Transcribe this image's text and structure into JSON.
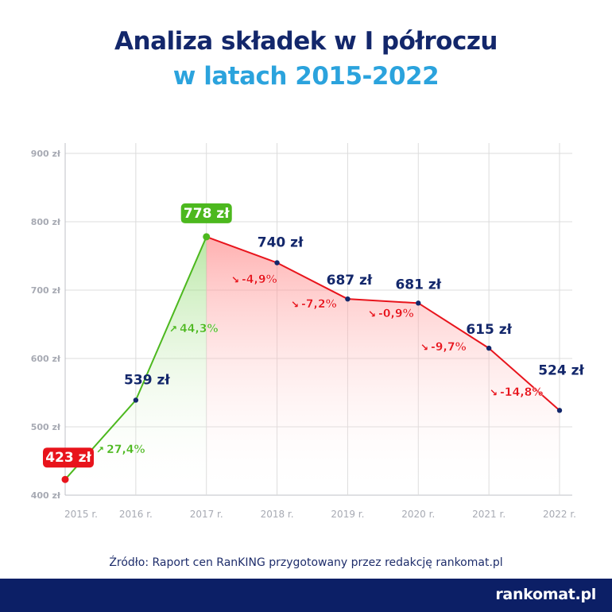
{
  "header": {
    "title_line1": "Analiza składek w I półroczu",
    "title_line2": "w latach 2015-2022"
  },
  "colors": {
    "title_dark": "#13276b",
    "title_light": "#2ba3dd",
    "green": "#4cb81e",
    "red": "#e8141c",
    "navy": "#13276b",
    "grid": "#dcdcdc",
    "tick": "#a7aab3"
  },
  "chart_data": {
    "type": "line",
    "title": "Analiza składek w I półroczu w latach 2015-2022",
    "xlabel": "",
    "ylabel": "",
    "ylim": [
      400,
      900
    ],
    "grid": true,
    "y_ticks": [
      {
        "value": 400,
        "label": "400 zł"
      },
      {
        "value": 500,
        "label": "500 zł"
      },
      {
        "value": 600,
        "label": "600 zł"
      },
      {
        "value": 700,
        "label": "700 zł"
      },
      {
        "value": 800,
        "label": "800 zł"
      },
      {
        "value": 900,
        "label": "900 zł"
      }
    ],
    "categories": [
      "2015 r.",
      "2016 r.",
      "2017 r.",
      "2018 r.",
      "2019 r.",
      "2020 r.",
      "2021 r.",
      "2022 r."
    ],
    "values": [
      423,
      539,
      778,
      740,
      687,
      681,
      615,
      524
    ],
    "value_labels": [
      "423 zł",
      "539 zł",
      "778 zł",
      "740 zł",
      "687 zł",
      "681 zł",
      "615 zł",
      "524 zł"
    ],
    "changes": [
      {
        "from": "2015 r.",
        "to": "2016 r.",
        "label": "27,4%",
        "direction": "up"
      },
      {
        "from": "2016 r.",
        "to": "2017 r.",
        "label": "44,3%",
        "direction": "up"
      },
      {
        "from": "2017 r.",
        "to": "2018 r.",
        "label": "-4,9%",
        "direction": "down"
      },
      {
        "from": "2018 r.",
        "to": "2019 r.",
        "label": "-7,2%",
        "direction": "down"
      },
      {
        "from": "2019 r.",
        "to": "2020 r.",
        "label": "-0,9%",
        "direction": "down"
      },
      {
        "from": "2020 r.",
        "to": "2021 r.",
        "label": "-9,7%",
        "direction": "down"
      },
      {
        "from": "2021 r.",
        "to": "2022 r.",
        "label": "-14,8%",
        "direction": "down"
      }
    ],
    "highlights": {
      "min_index": 0,
      "max_index": 2
    }
  },
  "footer": {
    "source": "Źródło: Raport cen RanKING przygotowany przez redakcję rankomat.pl",
    "logo_text": "rankomat.pl"
  }
}
